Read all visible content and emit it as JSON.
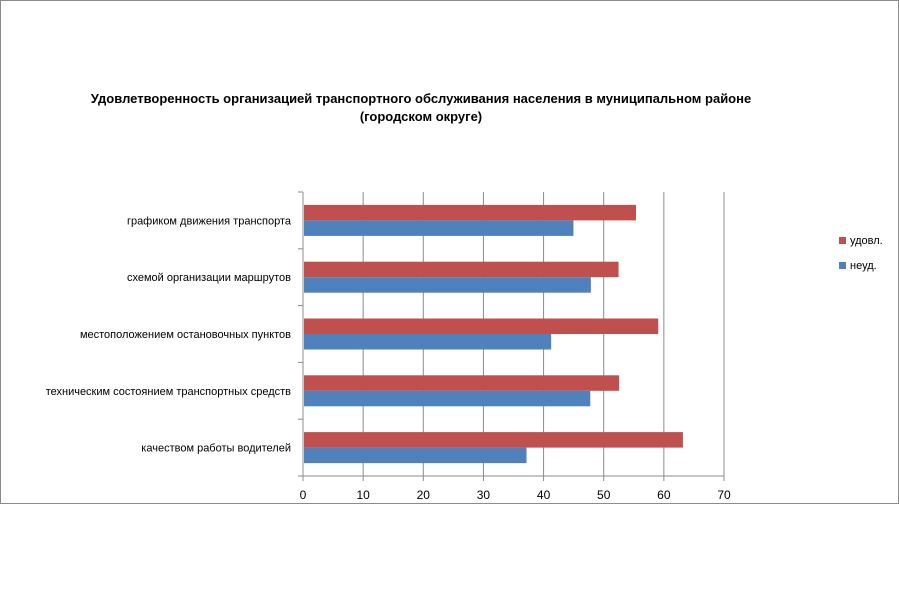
{
  "chart_data": {
    "type": "bar",
    "orientation": "horizontal",
    "title_line1": "Удовлетворенность организацией транспортного обслуживания населения в муниципальном районе",
    "title_line2": "(городском округе)",
    "categories": [
      "графиком движения  транспорта",
      "схемой организации маршрутов",
      "местоположением  остановочных пунктов",
      "техническим  состоянием транспортных средств",
      "качеством  работы водителей"
    ],
    "series": [
      {
        "name": "удовл.",
        "color": "#c0504d",
        "values": [
          55.2,
          52.3,
          58.9,
          52.4,
          63.0
        ]
      },
      {
        "name": "неуд.",
        "color": "#4f81bd",
        "values": [
          44.8,
          47.7,
          41.1,
          47.6,
          37.0
        ]
      }
    ],
    "xlim": [
      0,
      70
    ],
    "xticks": [
      "0",
      "10",
      "20",
      "30",
      "40",
      "50",
      "60",
      "70"
    ],
    "grid": true,
    "legend_position": "right"
  }
}
